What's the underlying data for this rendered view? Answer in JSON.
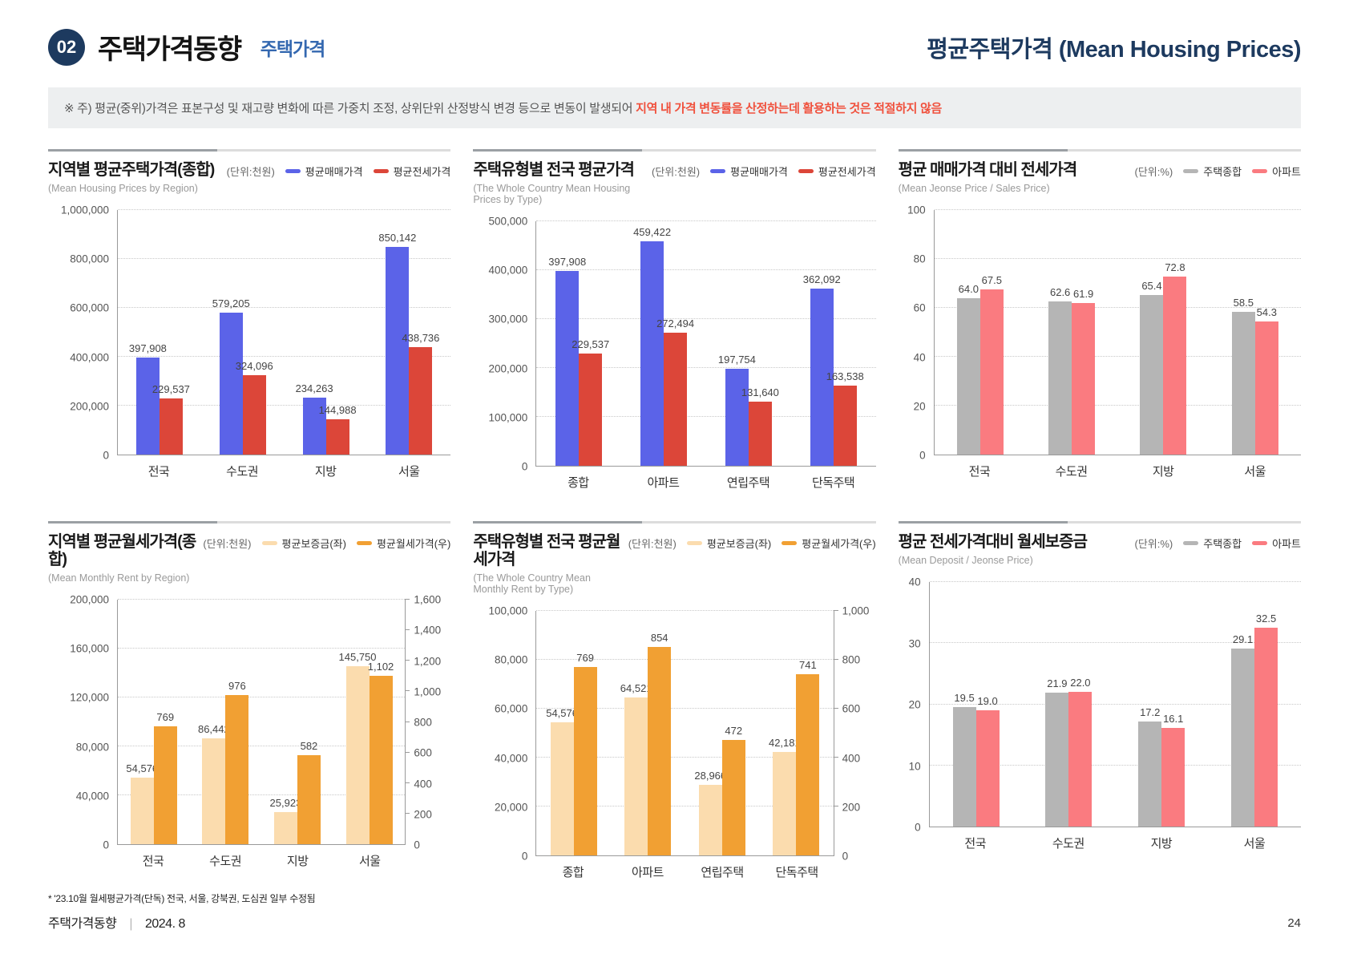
{
  "header": {
    "badge": "02",
    "title": "주택가격동향",
    "subtitle": "주택가격",
    "right_title": "평균주택가격 (Mean Housing Prices)"
  },
  "note": {
    "prefix": "※ 주) 평균(중위)가격은 표본구성 및 재고량 변화에 따른 가중치 조정, 상위단위 산정방식 변경 등으로 변동이 발생되어 ",
    "highlight": "지역 내 가격 변동률을 산정하는데 활용하는 것은 적절하지 않음"
  },
  "colors": {
    "header_navy": "#1d3a5f",
    "subtitle_blue": "#3468b0",
    "note_bg": "#edeff0",
    "note_red": "#f0513d",
    "sale_blue": "#5b63e8",
    "jeonse_red": "#dc4639",
    "composite_gray": "#b5b5b5",
    "apartment_pink": "#fa7b80",
    "deposit_light_orange": "#fbdcae",
    "rent_orange": "#f1a033"
  },
  "chart_data": [
    {
      "type": "bar",
      "title": "지역별 평균주택가격(종합)",
      "subtitle": "(Mean Housing Prices by Region)",
      "unit": "(단위:천원)",
      "categories": [
        "전국",
        "수도권",
        "지방",
        "서울"
      ],
      "series": [
        {
          "name": "평균매매가격",
          "color": "#5b63e8",
          "axis": "y",
          "values": [
            397908,
            579205,
            234263,
            850142
          ],
          "labels": [
            "397,908",
            "579,205",
            "234,263",
            "850,142"
          ]
        },
        {
          "name": "평균전세가격",
          "color": "#dc4639",
          "axis": "y",
          "values": [
            229537,
            324096,
            144988,
            438736
          ],
          "labels": [
            "229,537",
            "324,096",
            "144,988",
            "438,736"
          ]
        }
      ],
      "ylim": [
        0,
        1000000
      ],
      "yticks": {
        "values": [
          0,
          200000,
          400000,
          600000,
          800000,
          1000000
        ],
        "labels": [
          "0",
          "200,000",
          "400,000",
          "600,000",
          "800,000",
          "1,000,000"
        ]
      },
      "grid": "dotted",
      "legend_position": "top-right"
    },
    {
      "type": "bar",
      "title": "주택유형별 전국 평균가격",
      "subtitle": "(The Whole Country Mean Housing Prices by Type)",
      "unit": "(단위:천원)",
      "categories": [
        "종합",
        "아파트",
        "연립주택",
        "단독주택"
      ],
      "series": [
        {
          "name": "평균매매가격",
          "color": "#5b63e8",
          "axis": "y",
          "values": [
            397908,
            459422,
            197754,
            362092
          ],
          "labels": [
            "397,908",
            "459,422",
            "197,754",
            "362,092"
          ]
        },
        {
          "name": "평균전세가격",
          "color": "#dc4639",
          "axis": "y",
          "values": [
            229537,
            272494,
            131640,
            163538
          ],
          "labels": [
            "229,537",
            "272,494",
            "131,640",
            "163,538"
          ]
        }
      ],
      "ylim": [
        0,
        500000
      ],
      "yticks": {
        "values": [
          0,
          100000,
          200000,
          300000,
          400000,
          500000
        ],
        "labels": [
          "0",
          "100,000",
          "200,000",
          "300,000",
          "400,000",
          "500,000"
        ]
      },
      "grid": "dotted",
      "legend_position": "top-right"
    },
    {
      "type": "bar",
      "title": "평균 매매가격 대비 전세가격",
      "subtitle": "(Mean Jeonse Price / Sales Price)",
      "unit": "(단위:%)",
      "categories": [
        "전국",
        "수도권",
        "지방",
        "서울"
      ],
      "series": [
        {
          "name": "주택종합",
          "color": "#b5b5b5",
          "axis": "y",
          "values": [
            64.0,
            62.6,
            65.4,
            58.5
          ],
          "labels": [
            "64.0",
            "62.6",
            "65.4",
            "58.5"
          ]
        },
        {
          "name": "아파트",
          "color": "#fa7b80",
          "axis": "y",
          "values": [
            67.5,
            61.9,
            72.8,
            54.3
          ],
          "labels": [
            "67.5",
            "61.9",
            "72.8",
            "54.3"
          ]
        }
      ],
      "ylim": [
        0,
        100
      ],
      "yticks": {
        "values": [
          0,
          20,
          40,
          60,
          80,
          100
        ],
        "labels": [
          "0",
          "20",
          "40",
          "60",
          "80",
          "100"
        ]
      },
      "grid": "dotted",
      "legend_position": "top-right"
    },
    {
      "type": "bar",
      "title": "지역별 평균월세가격(종합)",
      "subtitle": "(Mean Monthly Rent by Region)",
      "unit": "(단위:천원)",
      "categories": [
        "전국",
        "수도권",
        "지방",
        "서울"
      ],
      "series": [
        {
          "name": "평균보증금(좌)",
          "color": "#fbdcae",
          "axis": "y",
          "values": [
            54576,
            86442,
            25923,
            145750
          ],
          "labels": [
            "54,576",
            "86,442",
            "25,923",
            "145,750"
          ]
        },
        {
          "name": "평균월세가격(우)",
          "color": "#f1a033",
          "axis": "y2",
          "values": [
            769,
            976,
            582,
            1102
          ],
          "labels": [
            "769",
            "976",
            "582",
            "1,102"
          ]
        }
      ],
      "ylim": [
        0,
        200000
      ],
      "yticks": {
        "values": [
          0,
          40000,
          80000,
          120000,
          160000,
          200000
        ],
        "labels": [
          "0",
          "40,000",
          "80,000",
          "120,000",
          "160,000",
          "200,000"
        ]
      },
      "y2lim": [
        0,
        1600
      ],
      "y2ticks": {
        "values": [
          0,
          200,
          400,
          600,
          800,
          1000,
          1200,
          1400,
          1600
        ],
        "labels": [
          "0",
          "200",
          "400",
          "600",
          "800",
          "1,000",
          "1,200",
          "1,400",
          "1,600"
        ]
      },
      "grid": "dotted",
      "legend_position": "top-right"
    },
    {
      "type": "bar",
      "title": "주택유형별 전국 평균월세가격",
      "subtitle": "(The Whole Country Mean Monthly Rent by Type)",
      "unit": "(단위:천원)",
      "categories": [
        "종합",
        "아파트",
        "연립주택",
        "단독주택"
      ],
      "series": [
        {
          "name": "평균보증금(좌)",
          "color": "#fbdcae",
          "axis": "y",
          "values": [
            54576,
            64521,
            28966,
            42181
          ],
          "labels": [
            "54,576",
            "64,521",
            "28,966",
            "42,181"
          ]
        },
        {
          "name": "평균월세가격(우)",
          "color": "#f1a033",
          "axis": "y2",
          "values": [
            769,
            854,
            472,
            741
          ],
          "labels": [
            "769",
            "854",
            "472",
            "741"
          ]
        }
      ],
      "ylim": [
        0,
        100000
      ],
      "yticks": {
        "values": [
          0,
          20000,
          40000,
          60000,
          80000,
          100000
        ],
        "labels": [
          "0",
          "20,000",
          "40,000",
          "60,000",
          "80,000",
          "100,000"
        ]
      },
      "y2lim": [
        0,
        1000
      ],
      "y2ticks": {
        "values": [
          0,
          200,
          400,
          600,
          800,
          1000
        ],
        "labels": [
          "0",
          "200",
          "400",
          "600",
          "800",
          "1,000"
        ]
      },
      "grid": "dotted",
      "legend_position": "top-right"
    },
    {
      "type": "bar",
      "title": "평균 전세가격대비 월세보증금",
      "subtitle": "(Mean Deposit / Jeonse Price)",
      "unit": "(단위:%)",
      "categories": [
        "전국",
        "수도권",
        "지방",
        "서울"
      ],
      "series": [
        {
          "name": "주택종합",
          "color": "#b5b5b5",
          "axis": "y",
          "values": [
            19.5,
            21.9,
            17.2,
            29.1
          ],
          "labels": [
            "19.5",
            "21.9",
            "17.2",
            "29.1"
          ]
        },
        {
          "name": "아파트",
          "color": "#fa7b80",
          "axis": "y",
          "values": [
            19.0,
            22.0,
            16.1,
            32.5
          ],
          "labels": [
            "19.0",
            "22.0",
            "16.1",
            "32.5"
          ]
        }
      ],
      "ylim": [
        0,
        40
      ],
      "yticks": {
        "values": [
          0,
          10,
          20,
          30,
          40
        ],
        "labels": [
          "0",
          "10",
          "20",
          "30",
          "40"
        ]
      },
      "grid": "dotted",
      "legend_position": "top-right"
    }
  ],
  "footer": {
    "note": "* '23.10월 월세평균가격(단독) 전국, 서울, 강북권, 도심권 일부 수정됨",
    "doc_title": "주택가격동향",
    "separator": "|",
    "date": "2024. 8",
    "page_number": "24"
  }
}
